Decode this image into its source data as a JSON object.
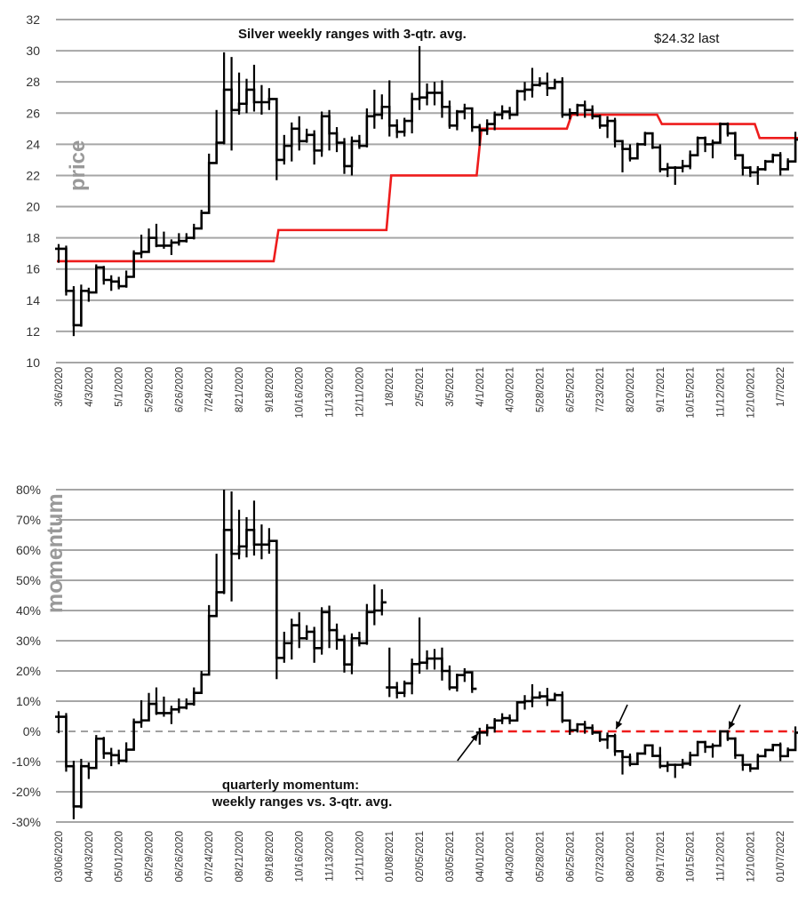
{
  "chart_data": [
    {
      "type": "bar",
      "subtype": "weekly-range-step",
      "title": "Silver weekly ranges with 3-qtr. avg.",
      "annotation": "$24.32 last",
      "ylabel": "price",
      "ylim": [
        10,
        32
      ],
      "yticks": [
        "10",
        "12",
        "14",
        "16",
        "18",
        "20",
        "22",
        "24",
        "26",
        "28",
        "30",
        "32"
      ],
      "grid": true,
      "xtick_labels": [
        "3/6/2020",
        "4/3/2020",
        "5/1/2020",
        "5/29/2020",
        "6/26/2020",
        "7/24/2020",
        "8/21/2020",
        "9/18/2020",
        "10/16/2020",
        "11/13/2020",
        "12/11/2020",
        "1/8/2021",
        "2/5/2021",
        "3/5/2021",
        "4/1/2021",
        "4/30/2021",
        "5/28/2021",
        "6/25/2021",
        "7/23/2021",
        "8/20/2021",
        "9/17/2021",
        "10/15/2021",
        "11/12/2021",
        "12/10/2021",
        "1/7/2022"
      ],
      "close": [
        17.3,
        14.6,
        12.4,
        14.6,
        14.5,
        16.1,
        15.3,
        15.2,
        14.9,
        15.5,
        17.0,
        17.1,
        18.0,
        17.5,
        17.5,
        17.7,
        17.8,
        18.0,
        18.6,
        19.6,
        22.8,
        24.1,
        27.5,
        26.2,
        26.6,
        27.5,
        26.7,
        26.7,
        26.9,
        23.0,
        23.9,
        25.0,
        24.2,
        24.6,
        23.6,
        25.8,
        24.7,
        24.1,
        22.6,
        24.2,
        23.9,
        25.8,
        25.9,
        26.4,
        25.2,
        24.8,
        25.5,
        26.9,
        27.0,
        27.3,
        27.3,
        26.4,
        25.2,
        26.1,
        26.3,
        25.1,
        24.9,
        25.3,
        25.9,
        26.1,
        25.9,
        27.4,
        27.5,
        27.8,
        27.9,
        27.6,
        28.0,
        25.9,
        26.0,
        26.5,
        26.2,
        25.8,
        25.2,
        25.5,
        24.2,
        23.7,
        23.1,
        24.0,
        24.7,
        23.8,
        22.4,
        22.5,
        22.5,
        22.6,
        23.3,
        24.4,
        24.0,
        24.1,
        25.3,
        24.7,
        23.3,
        22.5,
        22.2,
        22.4,
        22.9,
        23.3,
        22.4,
        22.9,
        24.3
      ],
      "low": [
        16.4,
        14.3,
        11.7,
        12.3,
        13.9,
        14.5,
        15.0,
        14.6,
        14.7,
        14.8,
        15.5,
        16.7,
        17.3,
        17.4,
        17.3,
        16.9,
        17.5,
        17.7,
        17.9,
        18.7,
        19.8,
        22.9,
        24.0,
        23.6,
        25.9,
        26.0,
        26.1,
        25.9,
        26.2,
        21.7,
        22.7,
        22.9,
        23.6,
        24.1,
        22.7,
        23.2,
        23.6,
        23.5,
        22.1,
        22.0,
        23.7,
        23.8,
        25.0,
        25.6,
        24.5,
        24.4,
        24.5,
        24.7,
        26.2,
        26.5,
        26.5,
        25.7,
        25.0,
        24.9,
        25.6,
        24.8,
        23.9,
        24.6,
        24.9,
        25.6,
        25.6,
        25.9,
        26.8,
        27.0,
        27.7,
        27.1,
        27.7,
        25.7,
        25.6,
        25.8,
        25.7,
        25.6,
        25.0,
        24.4,
        23.8,
        22.2,
        22.9,
        23.2,
        23.9,
        23.7,
        22.2,
        21.9,
        21.4,
        22.2,
        22.4,
        23.3,
        23.5,
        23.1,
        24.1,
        24.5,
        23.0,
        22.0,
        21.9,
        21.4,
        22.3,
        22.8,
        22.0,
        22.4,
        23.0
      ],
      "high": [
        17.6,
        17.5,
        14.9,
        15.0,
        14.8,
        16.3,
        16.2,
        15.6,
        15.5,
        15.9,
        17.2,
        18.2,
        18.6,
        18.9,
        18.4,
        17.9,
        18.3,
        18.3,
        18.9,
        19.8,
        23.4,
        26.2,
        29.9,
        29.6,
        28.6,
        28.2,
        29.1,
        27.8,
        27.6,
        26.9,
        24.6,
        25.4,
        25.8,
        25.0,
        24.9,
        26.1,
        26.2,
        25.1,
        24.4,
        24.5,
        24.6,
        26.3,
        27.5,
        27.2,
        28.1,
        25.6,
        25.7,
        27.3,
        30.3,
        27.9,
        28.0,
        28.1,
        26.8,
        26.2,
        26.6,
        26.3,
        25.3,
        25.6,
        26.1,
        26.5,
        26.4,
        27.5,
        28.0,
        28.9,
        28.3,
        28.6,
        28.2,
        28.3,
        26.3,
        26.6,
        26.8,
        26.5,
        25.9,
        25.8,
        25.7,
        23.9,
        24.0,
        24.1,
        24.8,
        24.7,
        24.0,
        22.8,
        22.6,
        23.0,
        23.6,
        24.5,
        24.5,
        24.3,
        25.4,
        25.4,
        24.8,
        23.0,
        22.6,
        22.6,
        23.0,
        23.4,
        23.5,
        23.1,
        24.8
      ],
      "avg_3qtr_steps": [
        {
          "from_week": 0,
          "to_week": 28,
          "value": 16.5
        },
        {
          "from_week": 29,
          "to_week": 43,
          "value": 18.5
        },
        {
          "from_week": 44,
          "to_week": 55,
          "value": 22.0
        },
        {
          "from_week": 56,
          "to_week": 67,
          "value": 25.0
        },
        {
          "from_week": 68,
          "to_week": 79,
          "value": 25.9
        },
        {
          "from_week": 80,
          "to_week": 92,
          "value": 25.3
        },
        {
          "from_week": 93,
          "to_week": 98,
          "value": 24.4
        }
      ],
      "series_colors": {
        "range": "#000000",
        "avg": "#ee1c1c",
        "grid": "#a6a6a6"
      }
    },
    {
      "type": "bar",
      "subtype": "momentum-range-step",
      "title": "quarterly momentum:",
      "subtitle": "weekly ranges vs. 3-qtr. avg.",
      "ylabel": "momentum",
      "ylim": [
        -30,
        80
      ],
      "yticks": [
        "-30%",
        "-20%",
        "-10%",
        "0%",
        "10%",
        "20%",
        "30%",
        "40%",
        "50%",
        "60%",
        "70%",
        "80%"
      ],
      "grid": true,
      "xtick_labels": [
        "03/06/2020",
        "04/03/2020",
        "05/01/2020",
        "05/29/2020",
        "06/26/2020",
        "07/24/2020",
        "08/21/2020",
        "09/18/2020",
        "10/16/2020",
        "11/13/2020",
        "12/11/2020",
        "01/08/2021",
        "02/05/2021",
        "03/05/2021",
        "04/01/2021",
        "04/30/2021",
        "05/28/2021",
        "06/25/2021",
        "07/23/2021",
        "08/20/2021",
        "09/17/2021",
        "10/15/2021",
        "11/12/2021",
        "12/10/2021",
        "01/07/2022"
      ],
      "derived_from": "close / 3-qtr avg - 1",
      "zero_line_red_from_week": 56,
      "arrow_weeks": [
        56,
        74,
        89
      ]
    }
  ]
}
